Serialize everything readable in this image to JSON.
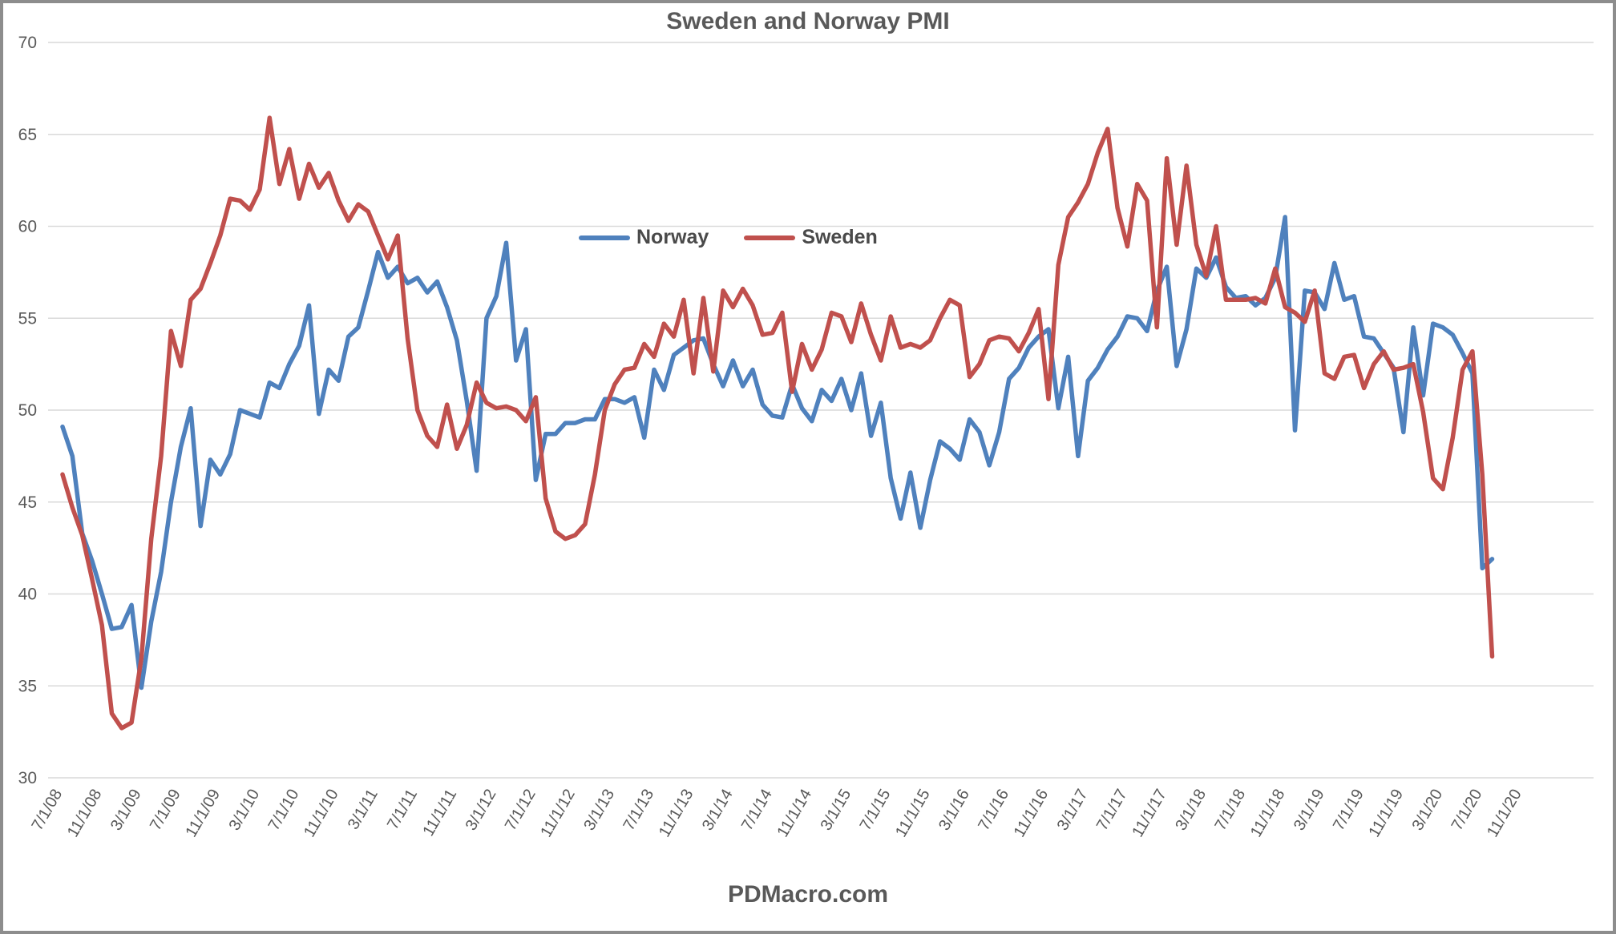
{
  "title": "Sweden and Norway PMI",
  "footer": "PDMacro.com",
  "legend": [
    {
      "label": "Norway",
      "color": "#4F81BD"
    },
    {
      "label": "Sweden",
      "color": "#C0504D"
    }
  ],
  "colors": {
    "grid": "#D9D9D9",
    "axis_text": "#595959",
    "title_text": "#595959",
    "border": "#8D8D8D",
    "norway_line": "#4F81BD",
    "sweden_line": "#C0504D"
  },
  "chart_data": {
    "type": "line",
    "title": "Sweden and Norway PMI",
    "xlabel": "",
    "ylabel": "",
    "ylim": [
      30,
      70
    ],
    "y_ticks": [
      30,
      35,
      40,
      45,
      50,
      55,
      60,
      65,
      70
    ],
    "grid": true,
    "legend_position": "inside-top-center",
    "x_start_label": "7/1/08",
    "x_tick_every_n_points": 4,
    "x_tick_labels": [
      "7/1/08",
      "11/1/08",
      "3/1/09",
      "7/1/09",
      "11/1/09",
      "3/1/10",
      "7/1/10",
      "11/1/10",
      "3/1/11",
      "7/1/11",
      "11/1/11",
      "3/1/12",
      "7/1/12",
      "11/1/12",
      "3/1/13",
      "7/1/13",
      "11/1/13",
      "3/1/14",
      "7/1/14",
      "11/1/14",
      "3/1/15",
      "7/1/15",
      "11/1/15",
      "3/1/16",
      "7/1/16",
      "11/1/16",
      "3/1/17",
      "7/1/17",
      "11/1/17",
      "3/1/18",
      "7/1/18",
      "11/1/18",
      "3/1/19",
      "7/1/19",
      "11/1/19",
      "3/1/20",
      "7/1/20",
      "11/1/20"
    ],
    "series": [
      {
        "name": "Norway",
        "color": "#4F81BD",
        "values": [
          49.1,
          47.5,
          43.3,
          41.8,
          40.0,
          38.1,
          38.2,
          39.4,
          34.9,
          38.5,
          41.2,
          45.0,
          48.0,
          50.1,
          43.7,
          47.3,
          46.5,
          47.6,
          50.0,
          49.8,
          49.6,
          51.5,
          51.2,
          52.5,
          53.5,
          55.7,
          49.8,
          52.2,
          51.6,
          54.0,
          54.5,
          56.5,
          58.6,
          57.2,
          57.8,
          56.9,
          57.2,
          56.4,
          57.0,
          55.6,
          53.8,
          50.5,
          46.7,
          55.0,
          56.2,
          59.1,
          52.7,
          54.4,
          46.2,
          48.7,
          48.7,
          49.3,
          49.3,
          49.5,
          49.5,
          50.6,
          50.6,
          50.4,
          50.7,
          48.5,
          52.2,
          51.1,
          53.0,
          53.4,
          53.8,
          53.9,
          52.5,
          51.3,
          52.7,
          51.3,
          52.2,
          50.3,
          49.7,
          49.6,
          51.4,
          50.1,
          49.4,
          51.1,
          50.5,
          51.7,
          50.0,
          52.0,
          48.6,
          50.4,
          46.3,
          44.1,
          46.6,
          43.6,
          46.2,
          48.3,
          47.9,
          47.3,
          49.5,
          48.8,
          47.0,
          48.8,
          51.7,
          52.3,
          53.4,
          54.0,
          54.4,
          50.1,
          52.9,
          47.5,
          51.6,
          52.3,
          53.3,
          54.0,
          55.1,
          55.0,
          54.3,
          56.5,
          57.8,
          52.4,
          54.4,
          57.7,
          57.2,
          58.3,
          56.7,
          56.1,
          56.2,
          55.7,
          56.1,
          57.2,
          60.5,
          48.9,
          56.5,
          56.4,
          55.5,
          58.0,
          56.0,
          56.2,
          54.0,
          53.9,
          53.1,
          52.3,
          48.8,
          54.5,
          50.8,
          54.7,
          54.5,
          54.1,
          53.1,
          52.0,
          41.4,
          41.9
        ]
      },
      {
        "name": "Sweden",
        "color": "#C0504D",
        "values": [
          46.5,
          44.7,
          43.2,
          40.8,
          38.3,
          33.5,
          32.7,
          33.0,
          36.5,
          43.0,
          47.5,
          54.3,
          52.4,
          56.0,
          56.6,
          58.0,
          59.5,
          61.5,
          61.4,
          60.9,
          62.0,
          65.9,
          62.3,
          64.2,
          61.5,
          63.4,
          62.1,
          62.9,
          61.4,
          60.3,
          61.2,
          60.8,
          59.5,
          58.2,
          59.5,
          53.9,
          50.0,
          48.6,
          48.0,
          50.3,
          47.9,
          49.2,
          51.5,
          50.4,
          50.1,
          50.2,
          50.0,
          49.4,
          50.7,
          45.2,
          43.4,
          43.0,
          43.2,
          43.8,
          46.5,
          50.0,
          51.4,
          52.2,
          52.3,
          53.6,
          52.9,
          54.7,
          54.0,
          56.0,
          52.0,
          56.1,
          52.1,
          56.5,
          55.6,
          56.6,
          55.7,
          54.1,
          54.2,
          55.3,
          51.0,
          53.6,
          52.2,
          53.3,
          55.3,
          55.1,
          53.7,
          55.8,
          54.1,
          52.7,
          55.1,
          53.4,
          53.6,
          53.4,
          53.8,
          55.0,
          56.0,
          55.7,
          51.8,
          52.5,
          53.8,
          54.0,
          53.9,
          53.2,
          54.2,
          55.5,
          50.6,
          57.9,
          60.5,
          61.3,
          62.3,
          64.0,
          65.3,
          61.0,
          58.9,
          62.3,
          61.4,
          54.5,
          63.7,
          59.0,
          63.3,
          59.0,
          57.3,
          60.0,
          56.0,
          56.0,
          56.0,
          56.1,
          55.8,
          57.7,
          55.6,
          55.3,
          54.8,
          56.5,
          52.0,
          51.7,
          52.9,
          53.0,
          51.2,
          52.5,
          53.2,
          52.2,
          52.3,
          52.5,
          49.9,
          46.3,
          45.7,
          48.5,
          52.2,
          53.2,
          46.5,
          36.6
        ]
      }
    ]
  }
}
